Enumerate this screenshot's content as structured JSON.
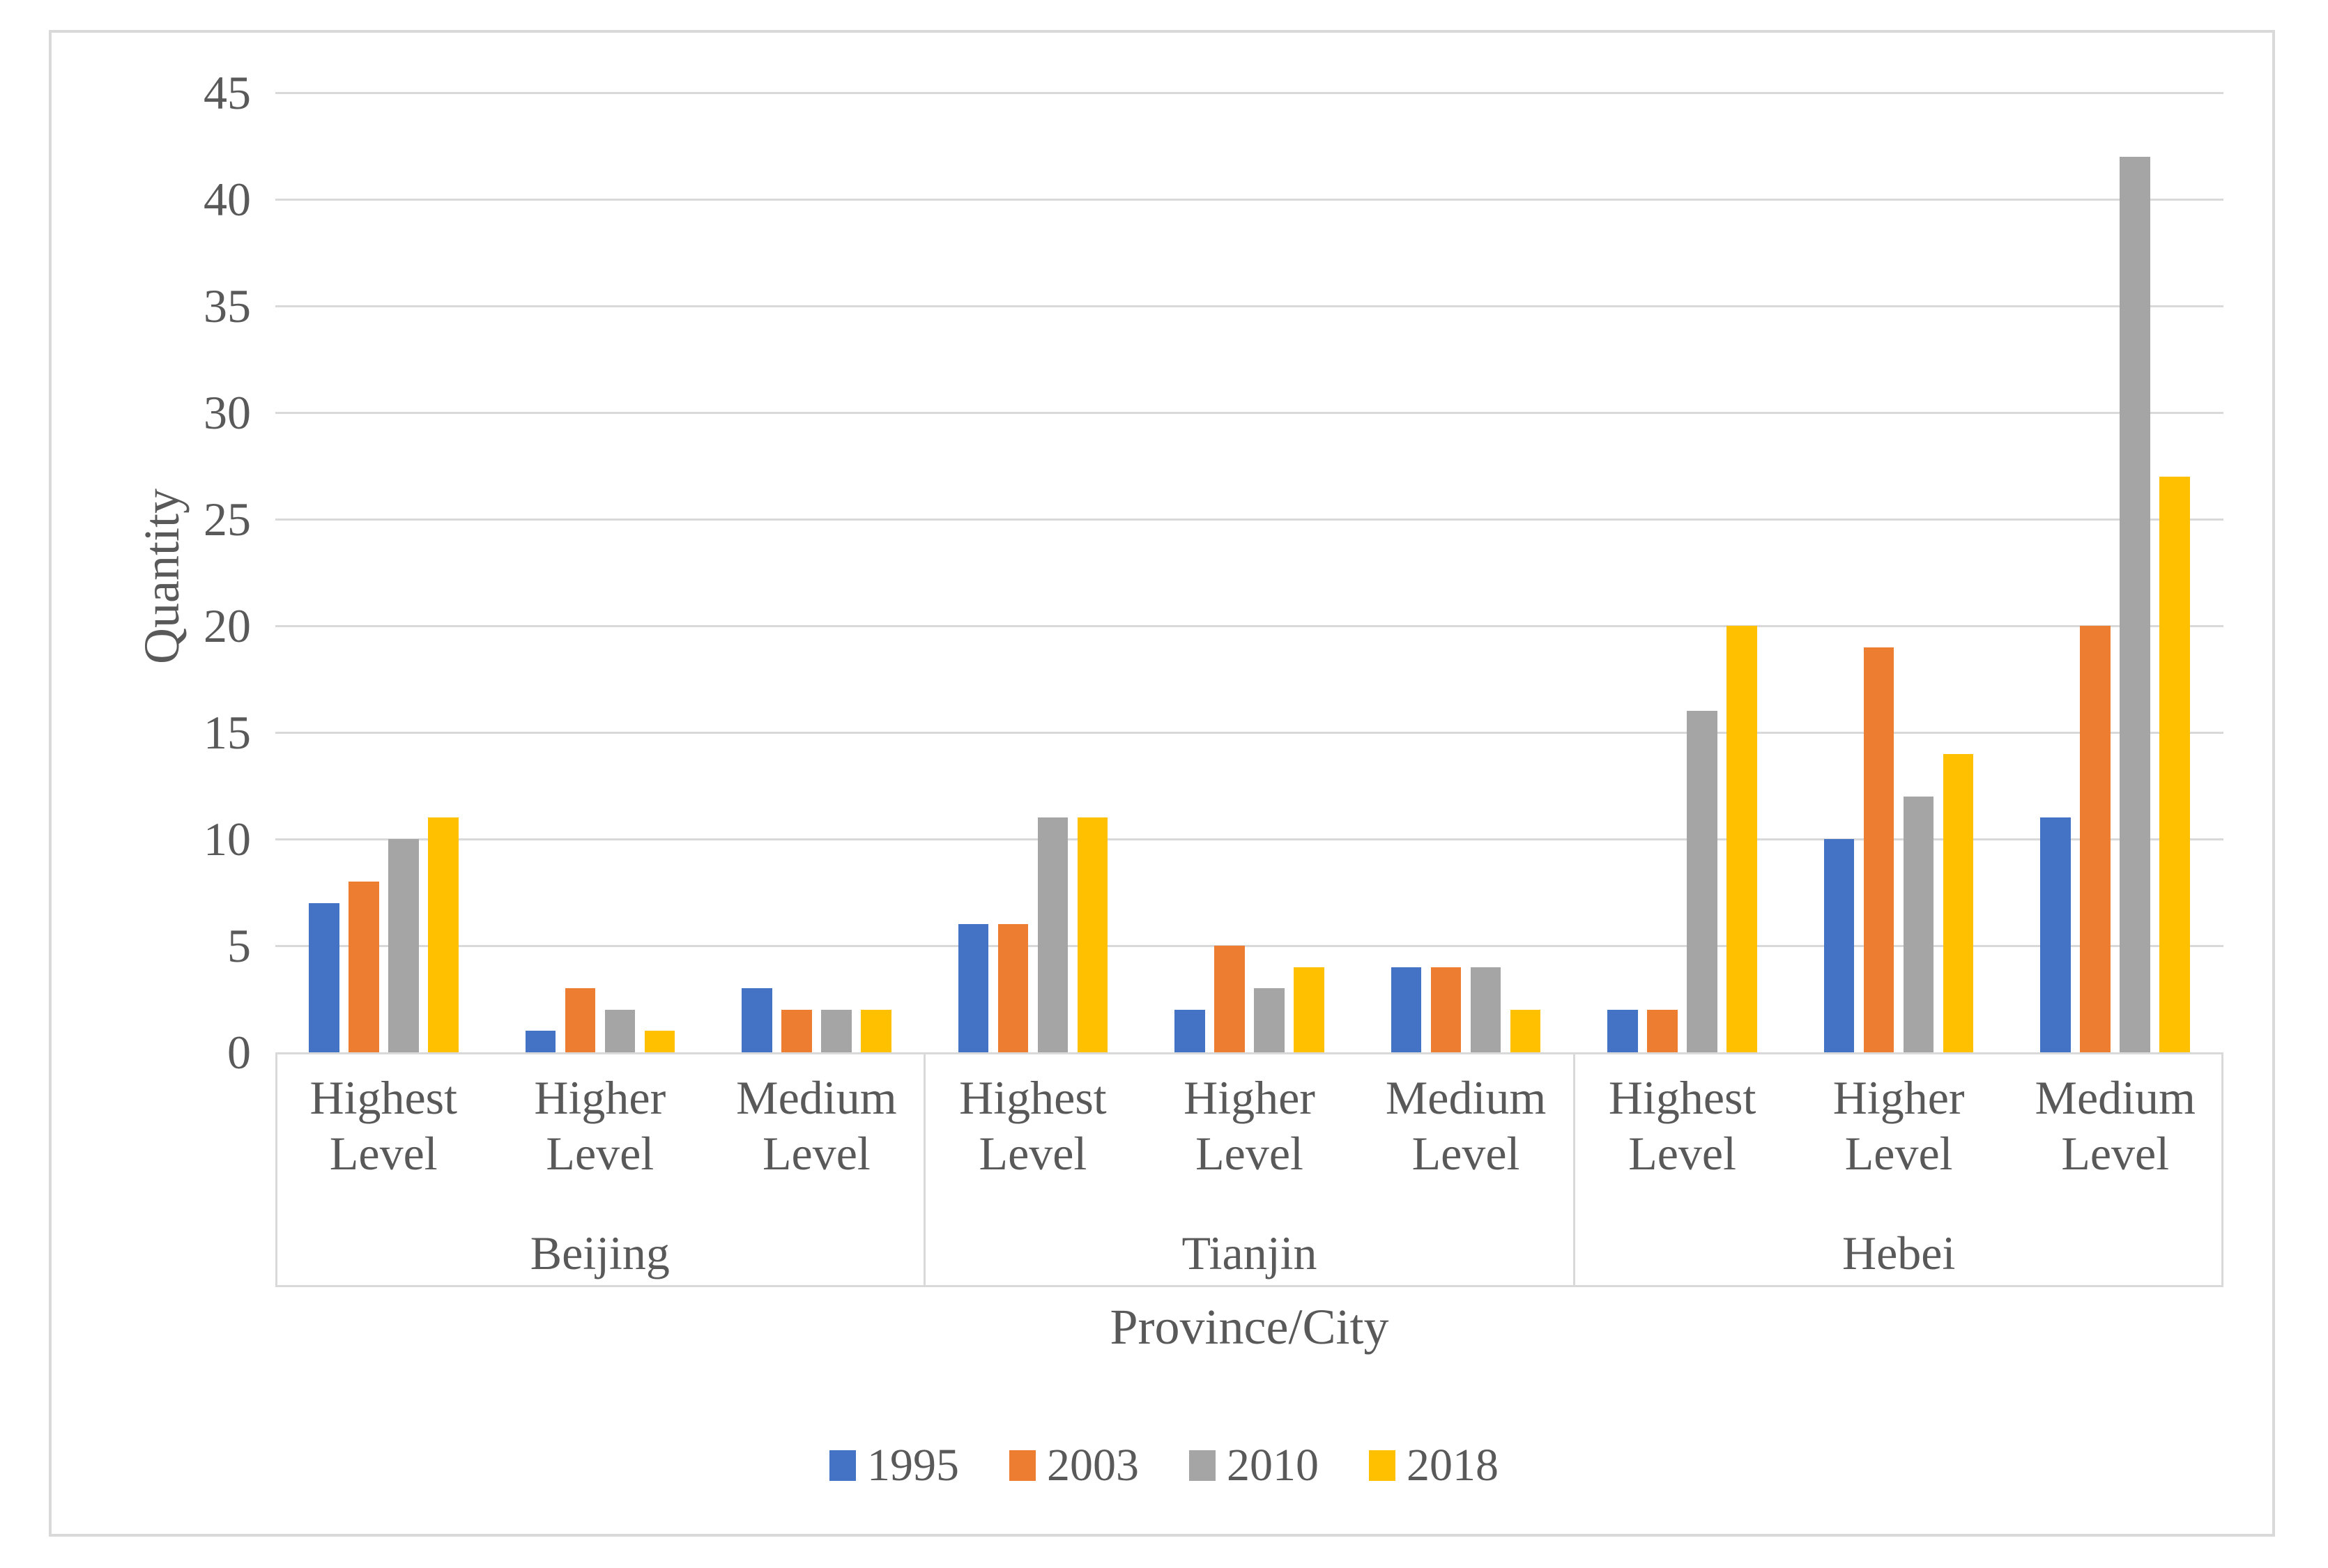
{
  "chart_data": {
    "type": "bar",
    "title": "",
    "y_axis": {
      "title": "Quantity",
      "min": 0,
      "max": 45,
      "step": 5
    },
    "x_axis": {
      "title": "Province/City"
    },
    "groups": [
      {
        "label": "Beijing",
        "categories": [
          "Highest Level",
          "Higher Level",
          "Medium Level"
        ]
      },
      {
        "label": "Tianjin",
        "categories": [
          "Highest Level",
          "Higher Level",
          "Medium Level"
        ]
      },
      {
        "label": "Hebei",
        "categories": [
          "Highest Level",
          "Higher Level",
          "Medium Level"
        ]
      }
    ],
    "series": [
      {
        "name": "1995",
        "color": "#4472C4",
        "values": [
          7,
          1,
          3,
          6,
          2,
          4,
          2,
          10,
          11
        ]
      },
      {
        "name": "2003",
        "color": "#ED7D31",
        "values": [
          8,
          3,
          2,
          6,
          5,
          4,
          2,
          19,
          20
        ]
      },
      {
        "name": "2010",
        "color": "#A5A5A5",
        "values": [
          10,
          2,
          2,
          11,
          3,
          4,
          16,
          12,
          42
        ]
      },
      {
        "name": "2018",
        "color": "#FFC000",
        "values": [
          11,
          1,
          2,
          11,
          4,
          2,
          20,
          14,
          27
        ]
      }
    ],
    "legend": {
      "position": "bottom",
      "entries": [
        "1995",
        "2003",
        "2010",
        "2018"
      ]
    },
    "grid": true,
    "styles": {
      "grid_color": "#D9D9D9",
      "axis_color": "#D9D9D9",
      "frame_color": "#D9D9D9",
      "text_color": "#595959",
      "background": "#FFFFFF"
    }
  }
}
